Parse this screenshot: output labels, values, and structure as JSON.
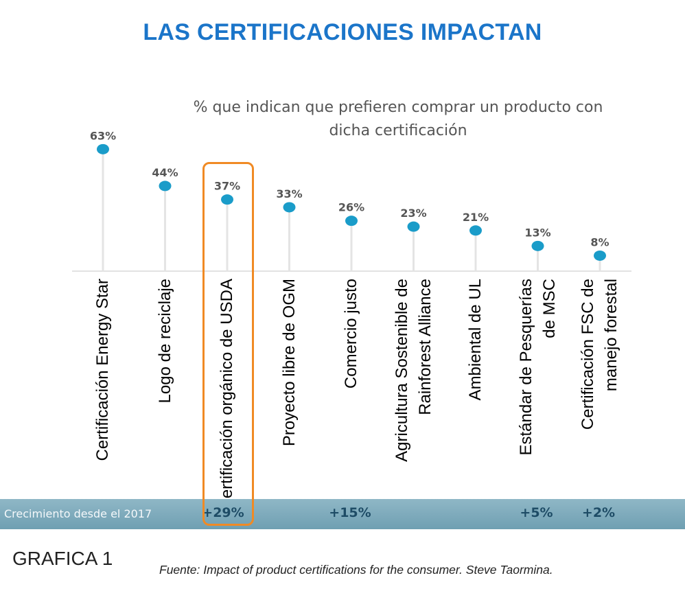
{
  "title": "LAS CERTIFICACIONES IMPACTAN",
  "subtitle_line1": "% que indican que prefieren comprar un producto con",
  "subtitle_line2": "dicha certificación",
  "colors": {
    "title": "#1b75c9",
    "dot": "#1a9cc9",
    "stem": "#e4e4e4",
    "highlight": "#f08a24",
    "growth_bar": "#7aa9bb"
  },
  "chart_data": {
    "type": "lollipop",
    "title": "LAS CERTIFICACIONES IMPACTAN",
    "subtitle": "% que indican que prefieren comprar un producto con dicha certificación",
    "unit": "%",
    "categories": [
      [
        "Certificación Energy Star"
      ],
      [
        "Logo de reciclaje"
      ],
      [
        "Certificación orgánico de USDA"
      ],
      [
        "Proyecto libre de OGM"
      ],
      [
        "Comercio justo"
      ],
      [
        "Agricultura Sostenible de",
        "Rainforest Alliance"
      ],
      [
        "Ambiental de UL"
      ],
      [
        "Estándar de Pesquerías",
        "de MSC"
      ],
      [
        "Certificación FSC de",
        "manejo forestal"
      ]
    ],
    "values": [
      63,
      44,
      37,
      33,
      26,
      23,
      21,
      13,
      8
    ],
    "value_labels": [
      "63%",
      "44%",
      "37%",
      "33%",
      "26%",
      "23%",
      "21%",
      "13%",
      "8%"
    ],
    "growth_label": "Crecimiento desde el 2017",
    "growth": [
      "",
      "",
      "+29%",
      "",
      "+15%",
      "",
      "",
      "+5%",
      "+2%"
    ],
    "highlighted_category_index": 2,
    "ylim": [
      0,
      100
    ]
  },
  "footer_label": "GRAFICA 1",
  "source": "Fuente:  Impact of product certifications for the consumer.  Steve Taormina."
}
